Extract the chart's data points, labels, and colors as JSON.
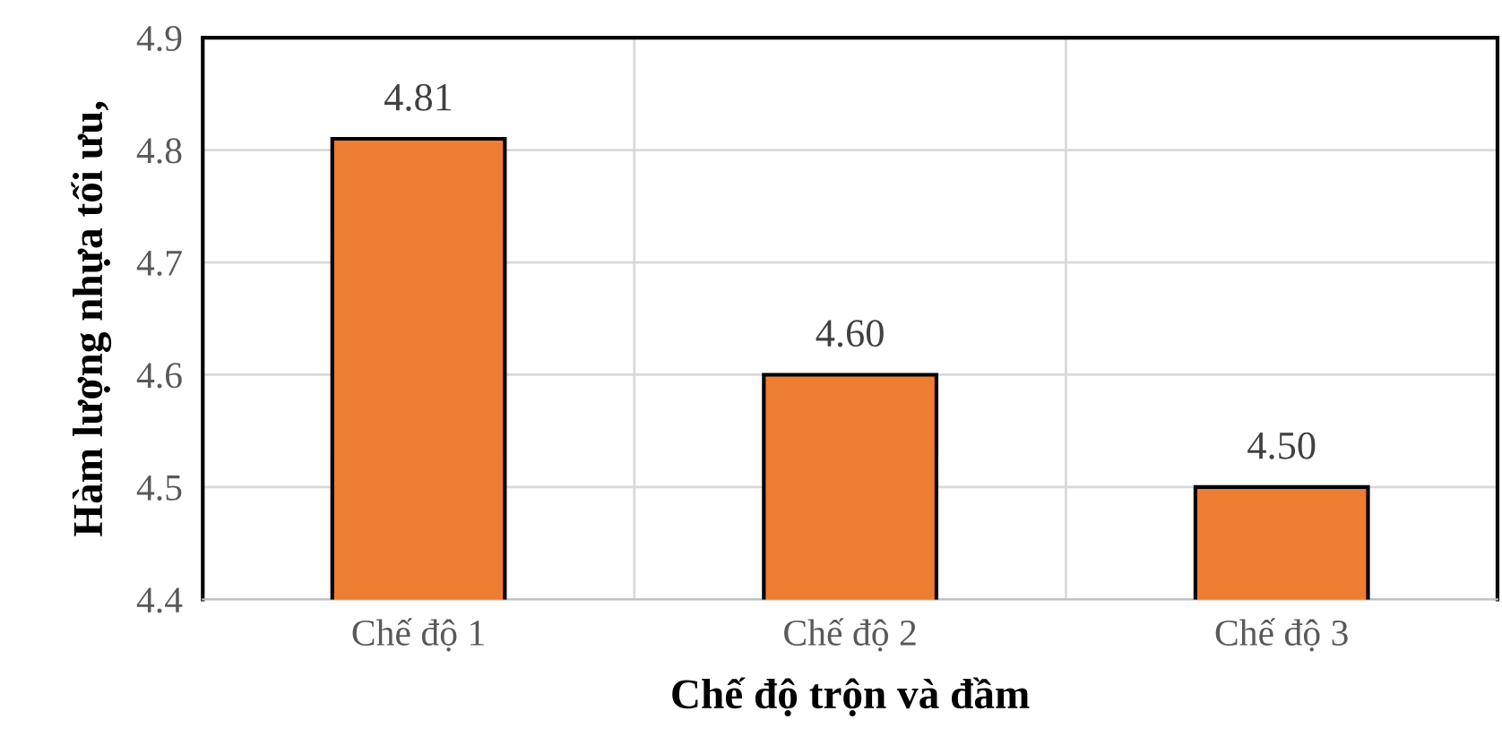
{
  "chart_data": {
    "type": "bar",
    "categories": [
      "Chế độ 1",
      "Chế độ 2",
      "Chế độ 3"
    ],
    "values": [
      4.81,
      4.6,
      4.5
    ],
    "value_labels": [
      "4.81",
      "4.60",
      "4.50"
    ],
    "color": "#ed7d31",
    "xlabel": "Chế độ trộn và đầm",
    "ylabel": "Hàm lượng nhựa tối ưu,",
    "ylim": [
      4.4,
      4.9
    ],
    "yticks": [
      4.4,
      4.5,
      4.6,
      4.7,
      4.8,
      4.9
    ],
    "grid": true
  }
}
